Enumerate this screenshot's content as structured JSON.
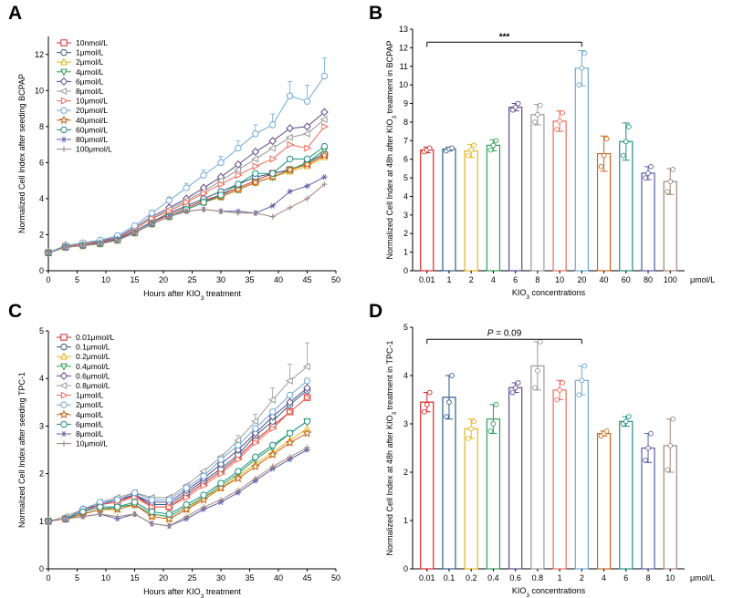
{
  "panels": {
    "A": "A",
    "B": "B",
    "C": "C",
    "D": "D"
  },
  "chart_data": [
    {
      "id": "A",
      "type": "line",
      "title": "",
      "xlabel": "Hours after KIO₃ treatment",
      "ylabel": "Normalized Cell Index after seeding BCPAP",
      "xlim": [
        0,
        50
      ],
      "ylim": [
        0,
        13
      ],
      "xticks": [
        0,
        5,
        10,
        15,
        20,
        25,
        30,
        35,
        40,
        45,
        50
      ],
      "yticks": [
        0,
        2,
        4,
        6,
        8,
        10,
        12
      ],
      "legend_position": "top-left",
      "x": [
        0,
        3,
        6,
        9,
        12,
        15,
        18,
        21,
        24,
        27,
        30,
        33,
        36,
        39,
        42,
        45,
        48
      ],
      "series": [
        {
          "name": "10nmol/L",
          "color": "#d62728",
          "marker": "square",
          "values": [
            1,
            1.35,
            1.45,
            1.55,
            1.75,
            2.2,
            2.7,
            3.1,
            3.5,
            3.9,
            4.2,
            4.6,
            5.0,
            5.4,
            5.6,
            5.9,
            6.4
          ]
        },
        {
          "name": "1μmol/L",
          "color": "#2f5d8a",
          "marker": "circle",
          "values": [
            1,
            1.35,
            1.45,
            1.55,
            1.75,
            2.2,
            2.7,
            3.2,
            3.6,
            4.0,
            4.4,
            4.8,
            5.2,
            5.4,
            5.6,
            6.0,
            6.5
          ]
        },
        {
          "name": "2μmol/L",
          "color": "#e8b31c",
          "marker": "triangle-up",
          "values": [
            1,
            1.3,
            1.4,
            1.5,
            1.7,
            2.1,
            2.6,
            3.0,
            3.4,
            3.8,
            4.1,
            4.5,
            4.9,
            5.2,
            5.5,
            5.8,
            6.3
          ]
        },
        {
          "name": "4μmol/L",
          "color": "#2ca05a",
          "marker": "triangle-down",
          "values": [
            1,
            1.3,
            1.4,
            1.5,
            1.7,
            2.1,
            2.6,
            3.0,
            3.4,
            3.8,
            4.1,
            4.5,
            4.9,
            5.2,
            5.6,
            6.0,
            6.7
          ]
        },
        {
          "name": "6μmol/L",
          "color": "#5b4a8c",
          "marker": "diamond",
          "values": [
            1,
            1.4,
            1.5,
            1.65,
            1.85,
            2.4,
            3.0,
            3.5,
            4.0,
            4.6,
            5.2,
            5.9,
            6.6,
            7.2,
            7.9,
            8.0,
            8.8
          ]
        },
        {
          "name": "8μmol/L",
          "color": "#9a9a9a",
          "marker": "triangle-left",
          "values": [
            1,
            1.35,
            1.5,
            1.6,
            1.8,
            2.3,
            2.9,
            3.4,
            3.9,
            4.4,
            5.0,
            5.6,
            6.2,
            6.8,
            7.4,
            7.6,
            8.4
          ]
        },
        {
          "name": "10μmol/L",
          "color": "#f06a5a",
          "marker": "triangle-right",
          "values": [
            1,
            1.35,
            1.45,
            1.6,
            1.8,
            2.3,
            2.9,
            3.3,
            3.8,
            4.3,
            4.8,
            5.3,
            5.8,
            6.2,
            7.0,
            6.8,
            8.0
          ]
        },
        {
          "name": "20μmol/L",
          "color": "#6fa8d6",
          "marker": "circle",
          "values": [
            1,
            1.4,
            1.55,
            1.7,
            1.95,
            2.5,
            3.2,
            3.9,
            4.6,
            5.3,
            6.0,
            6.8,
            7.6,
            8.1,
            9.7,
            9.4,
            10.8
          ]
        },
        {
          "name": "40μmol/L",
          "color": "#c8661c",
          "marker": "star",
          "values": [
            1,
            1.3,
            1.4,
            1.5,
            1.7,
            2.1,
            2.6,
            3.0,
            3.4,
            3.8,
            4.1,
            4.5,
            4.9,
            5.2,
            5.6,
            5.9,
            6.4
          ]
        },
        {
          "name": "60μmol/L",
          "color": "#1f8f7f",
          "marker": "circle",
          "values": [
            1,
            1.3,
            1.4,
            1.5,
            1.7,
            2.1,
            2.6,
            3.0,
            3.4,
            3.8,
            4.2,
            4.8,
            5.4,
            5.4,
            6.2,
            6.2,
            6.9
          ]
        },
        {
          "name": "80μmol/L",
          "color": "#5a5aa8",
          "marker": "asterisk",
          "values": [
            1,
            1.3,
            1.4,
            1.5,
            1.7,
            2.1,
            2.6,
            3.0,
            3.3,
            3.4,
            3.3,
            3.3,
            3.2,
            3.6,
            4.4,
            4.7,
            5.2
          ]
        },
        {
          "name": "100μmol/L",
          "color": "#a1887f",
          "marker": "plus",
          "values": [
            1,
            1.3,
            1.4,
            1.5,
            1.7,
            2.1,
            2.6,
            3.0,
            3.3,
            3.4,
            3.3,
            3.2,
            3.2,
            3.0,
            3.5,
            4.0,
            4.8
          ]
        }
      ],
      "error_bars": {
        "20μmol/L": [
          0,
          0,
          0,
          0,
          0,
          0.1,
          0.15,
          0.2,
          0.25,
          0.3,
          0.35,
          0.4,
          0.5,
          0.6,
          0.8,
          0.9,
          1.0
        ]
      }
    },
    {
      "id": "B",
      "type": "bar",
      "title": "",
      "xlabel": "KIO₃ concentrations",
      "ylabel": "Normalized Cell Index at 48h after KIO₃ treatment in BCPAP",
      "unit_label": "μmol/L",
      "categories": [
        "0.01",
        "1",
        "2",
        "4",
        "6",
        "8",
        "10",
        "20",
        "40",
        "60",
        "80",
        "100"
      ],
      "values": [
        6.5,
        6.55,
        6.45,
        6.75,
        8.8,
        8.4,
        8.05,
        10.9,
        6.3,
        6.95,
        5.25,
        4.8
      ],
      "errors": [
        0.15,
        0.1,
        0.35,
        0.3,
        0.2,
        0.55,
        0.55,
        0.95,
        0.95,
        1.0,
        0.35,
        0.7
      ],
      "points": [
        [
          6.4,
          6.5,
          6.6
        ],
        [
          6.45,
          6.55,
          6.6
        ],
        [
          6.2,
          6.5,
          6.75
        ],
        [
          6.5,
          6.75,
          7.0
        ],
        [
          8.65,
          8.8,
          9.0
        ],
        [
          8.0,
          8.4,
          8.9
        ],
        [
          7.6,
          8.05,
          8.5
        ],
        [
          10.0,
          10.9,
          11.7
        ],
        [
          5.6,
          6.2,
          7.1
        ],
        [
          6.2,
          6.95,
          7.75
        ],
        [
          5.0,
          5.25,
          5.6
        ],
        [
          4.25,
          4.8,
          5.45
        ]
      ],
      "colors": [
        "#d62728",
        "#2f5d8a",
        "#e8b31c",
        "#2ca05a",
        "#5b4a8c",
        "#9a9a9a",
        "#f06a5a",
        "#6fa8d6",
        "#c8661c",
        "#1f8f7f",
        "#5a5aa8",
        "#a1887f"
      ],
      "ylim": [
        0,
        13
      ],
      "yticks": [
        0,
        1,
        2,
        3,
        4,
        5,
        6,
        7,
        8,
        9,
        10,
        11,
        12,
        13
      ],
      "significance": {
        "from": "0.01",
        "to": "20",
        "label": "***",
        "y": 12.3
      }
    },
    {
      "id": "C",
      "type": "line",
      "title": "",
      "xlabel": "Hours after KIO₃ treatment",
      "ylabel": "Normalized Cell Index after seeding TPC-1",
      "xlim": [
        0,
        50
      ],
      "ylim": [
        0,
        5
      ],
      "xticks": [
        0,
        5,
        10,
        15,
        20,
        25,
        30,
        35,
        40,
        45,
        50
      ],
      "yticks": [
        0,
        1,
        2,
        3,
        4,
        5
      ],
      "legend_position": "top-left",
      "x": [
        0,
        3,
        6,
        9,
        12,
        15,
        18,
        21,
        24,
        27,
        30,
        33,
        36,
        39,
        42,
        45
      ],
      "series": [
        {
          "name": "0.01μmol/L",
          "color": "#d62728",
          "marker": "square",
          "values": [
            1,
            1.05,
            1.2,
            1.35,
            1.4,
            1.55,
            1.3,
            1.3,
            1.55,
            1.8,
            2.05,
            2.35,
            2.7,
            3.0,
            3.3,
            3.6
          ]
        },
        {
          "name": "0.1μmol/L",
          "color": "#2f5d8a",
          "marker": "circle",
          "values": [
            1,
            1.05,
            1.25,
            1.35,
            1.45,
            1.55,
            1.35,
            1.35,
            1.6,
            1.85,
            2.1,
            2.4,
            2.8,
            3.1,
            3.45,
            3.75
          ]
        },
        {
          "name": "0.2μmol/L",
          "color": "#e8b31c",
          "marker": "triangle-up",
          "values": [
            1,
            1.05,
            1.15,
            1.25,
            1.25,
            1.35,
            1.1,
            1.05,
            1.25,
            1.5,
            1.7,
            1.95,
            2.2,
            2.45,
            2.7,
            2.95
          ]
        },
        {
          "name": "0.4μmol/L",
          "color": "#2ca05a",
          "marker": "triangle-down",
          "values": [
            1,
            1.05,
            1.15,
            1.25,
            1.3,
            1.35,
            1.15,
            1.1,
            1.3,
            1.5,
            1.75,
            2.0,
            2.3,
            2.55,
            2.85,
            3.1
          ]
        },
        {
          "name": "0.6μmol/L",
          "color": "#5b4a8c",
          "marker": "diamond",
          "values": [
            1,
            1.05,
            1.25,
            1.35,
            1.45,
            1.55,
            1.4,
            1.4,
            1.65,
            1.9,
            2.2,
            2.5,
            2.85,
            3.2,
            3.5,
            3.8
          ]
        },
        {
          "name": "0.8μmol/L",
          "color": "#9a9a9a",
          "marker": "triangle-left",
          "values": [
            1,
            1.1,
            1.25,
            1.4,
            1.5,
            1.6,
            1.5,
            1.5,
            1.75,
            2.05,
            2.35,
            2.7,
            3.1,
            3.55,
            3.95,
            4.25
          ]
        },
        {
          "name": "1μmol/L",
          "color": "#f06a5a",
          "marker": "triangle-right",
          "values": [
            1,
            1.05,
            1.2,
            1.35,
            1.4,
            1.5,
            1.3,
            1.3,
            1.5,
            1.75,
            2.0,
            2.3,
            2.65,
            2.95,
            3.3,
            3.6
          ]
        },
        {
          "name": "2μmol/L",
          "color": "#6fa8d6",
          "marker": "circle",
          "values": [
            1,
            1.05,
            1.25,
            1.4,
            1.45,
            1.6,
            1.45,
            1.45,
            1.7,
            1.95,
            2.3,
            2.6,
            2.95,
            3.3,
            3.65,
            3.95
          ]
        },
        {
          "name": "4μmol/L",
          "color": "#c8661c",
          "marker": "star",
          "values": [
            1,
            1.05,
            1.15,
            1.25,
            1.25,
            1.35,
            1.1,
            1.05,
            1.25,
            1.45,
            1.7,
            1.9,
            2.15,
            2.4,
            2.65,
            2.85
          ]
        },
        {
          "name": "6μmol/L",
          "color": "#1f8f7f",
          "marker": "circle",
          "values": [
            1,
            1.05,
            1.2,
            1.3,
            1.3,
            1.4,
            1.2,
            1.15,
            1.35,
            1.55,
            1.8,
            2.05,
            2.35,
            2.6,
            2.85,
            3.1
          ]
        },
        {
          "name": "8μmol/L",
          "color": "#5a5aa8",
          "marker": "asterisk",
          "values": [
            1,
            1.05,
            1.1,
            1.15,
            1.05,
            1.15,
            0.95,
            0.9,
            1.05,
            1.25,
            1.4,
            1.6,
            1.85,
            2.1,
            2.3,
            2.5
          ]
        },
        {
          "name": "10μmol/L",
          "color": "#a1887f",
          "marker": "plus",
          "values": [
            1,
            1.05,
            1.1,
            1.15,
            1.1,
            1.15,
            0.95,
            0.9,
            1.1,
            1.3,
            1.45,
            1.65,
            1.9,
            2.15,
            2.35,
            2.55
          ]
        }
      ],
      "error_bars": {
        "0.8μmol/L": [
          0,
          0,
          0,
          0,
          0,
          0,
          0,
          0,
          0,
          0,
          0,
          0.1,
          0.15,
          0.25,
          0.35,
          0.5
        ]
      }
    },
    {
      "id": "D",
      "type": "bar",
      "title": "",
      "xlabel": "KIO₃ concentrations",
      "ylabel": "Normalized Cell Index at 48h after KIO₃ treatment in TPC-1",
      "unit_label": "μmol/L",
      "categories": [
        "0.01",
        "0.1",
        "0.2",
        "0.4",
        "0.6",
        "0.8",
        "1",
        "2",
        "4",
        "6",
        "8",
        "10"
      ],
      "values": [
        3.45,
        3.55,
        2.9,
        3.1,
        3.75,
        4.2,
        3.7,
        3.9,
        2.8,
        3.05,
        2.5,
        2.55
      ],
      "errors": [
        0.2,
        0.45,
        0.2,
        0.3,
        0.1,
        0.5,
        0.2,
        0.3,
        0.05,
        0.1,
        0.3,
        0.55
      ],
      "points": [
        [
          3.25,
          3.4,
          3.65
        ],
        [
          3.15,
          3.45,
          4.0
        ],
        [
          2.7,
          2.9,
          3.05
        ],
        [
          2.85,
          3.0,
          3.4
        ],
        [
          3.65,
          3.75,
          3.85
        ],
        [
          3.75,
          4.1,
          4.7
        ],
        [
          3.5,
          3.7,
          3.85
        ],
        [
          3.6,
          3.9,
          4.2
        ],
        [
          2.75,
          2.8,
          2.85
        ],
        [
          3.0,
          3.05,
          3.15
        ],
        [
          2.25,
          2.5,
          2.8
        ],
        [
          2.05,
          2.55,
          3.1
        ]
      ],
      "colors": [
        "#d62728",
        "#2f5d8a",
        "#e8b31c",
        "#2ca05a",
        "#5b4a8c",
        "#9a9a9a",
        "#f06a5a",
        "#6fa8d6",
        "#c8661c",
        "#1f8f7f",
        "#5a5aa8",
        "#a1887f"
      ],
      "ylim": [
        0,
        5
      ],
      "yticks": [
        0,
        1,
        2,
        3,
        4,
        5
      ],
      "significance": {
        "from": "0.01",
        "to": "2",
        "label_prefix": "P",
        "label_suffix": " = 0.09",
        "y": 4.75
      }
    }
  ]
}
